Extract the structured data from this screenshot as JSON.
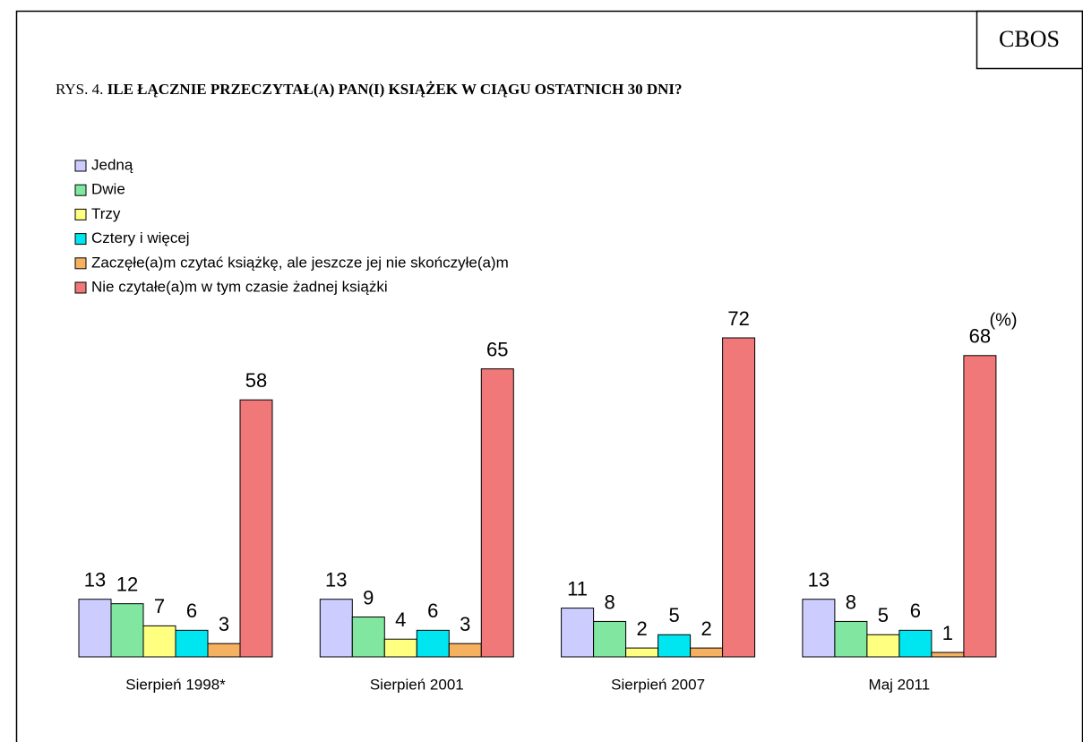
{
  "brand": "CBOS",
  "chart_data": {
    "type": "bar",
    "figure_label": "RYS. 4.",
    "title": "ILE ŁĄCZNIE PRZECZYTAŁ(A) PAN(I) KSIĄŻEK W CIĄGU OSTATNICH 30 DNI?",
    "unit_label": "(%)",
    "categories": [
      "Sierpień 1998*",
      "Sierpień 2001",
      "Sierpień 2007",
      "Maj 2011"
    ],
    "series": [
      {
        "name": "Jedną",
        "color": "#ccccff",
        "values": [
          13,
          13,
          11,
          13
        ]
      },
      {
        "name": "Dwie",
        "color": "#80e6a0",
        "values": [
          12,
          9,
          8,
          8
        ]
      },
      {
        "name": "Trzy",
        "color": "#ffff80",
        "values": [
          7,
          4,
          2,
          5
        ]
      },
      {
        "name": "Cztery i więcej",
        "color": "#00e6f0",
        "values": [
          6,
          6,
          5,
          6
        ]
      },
      {
        "name": "Zaczęłe(a)m czytać książkę, ale jeszcze jej nie skończyłe(a)m",
        "color": "#f5b060",
        "values": [
          3,
          3,
          2,
          1
        ]
      },
      {
        "name": "Nie czytałe(a)m w tym czasie żadnej książki",
        "color": "#f07878",
        "values": [
          58,
          65,
          72,
          68
        ]
      }
    ]
  }
}
